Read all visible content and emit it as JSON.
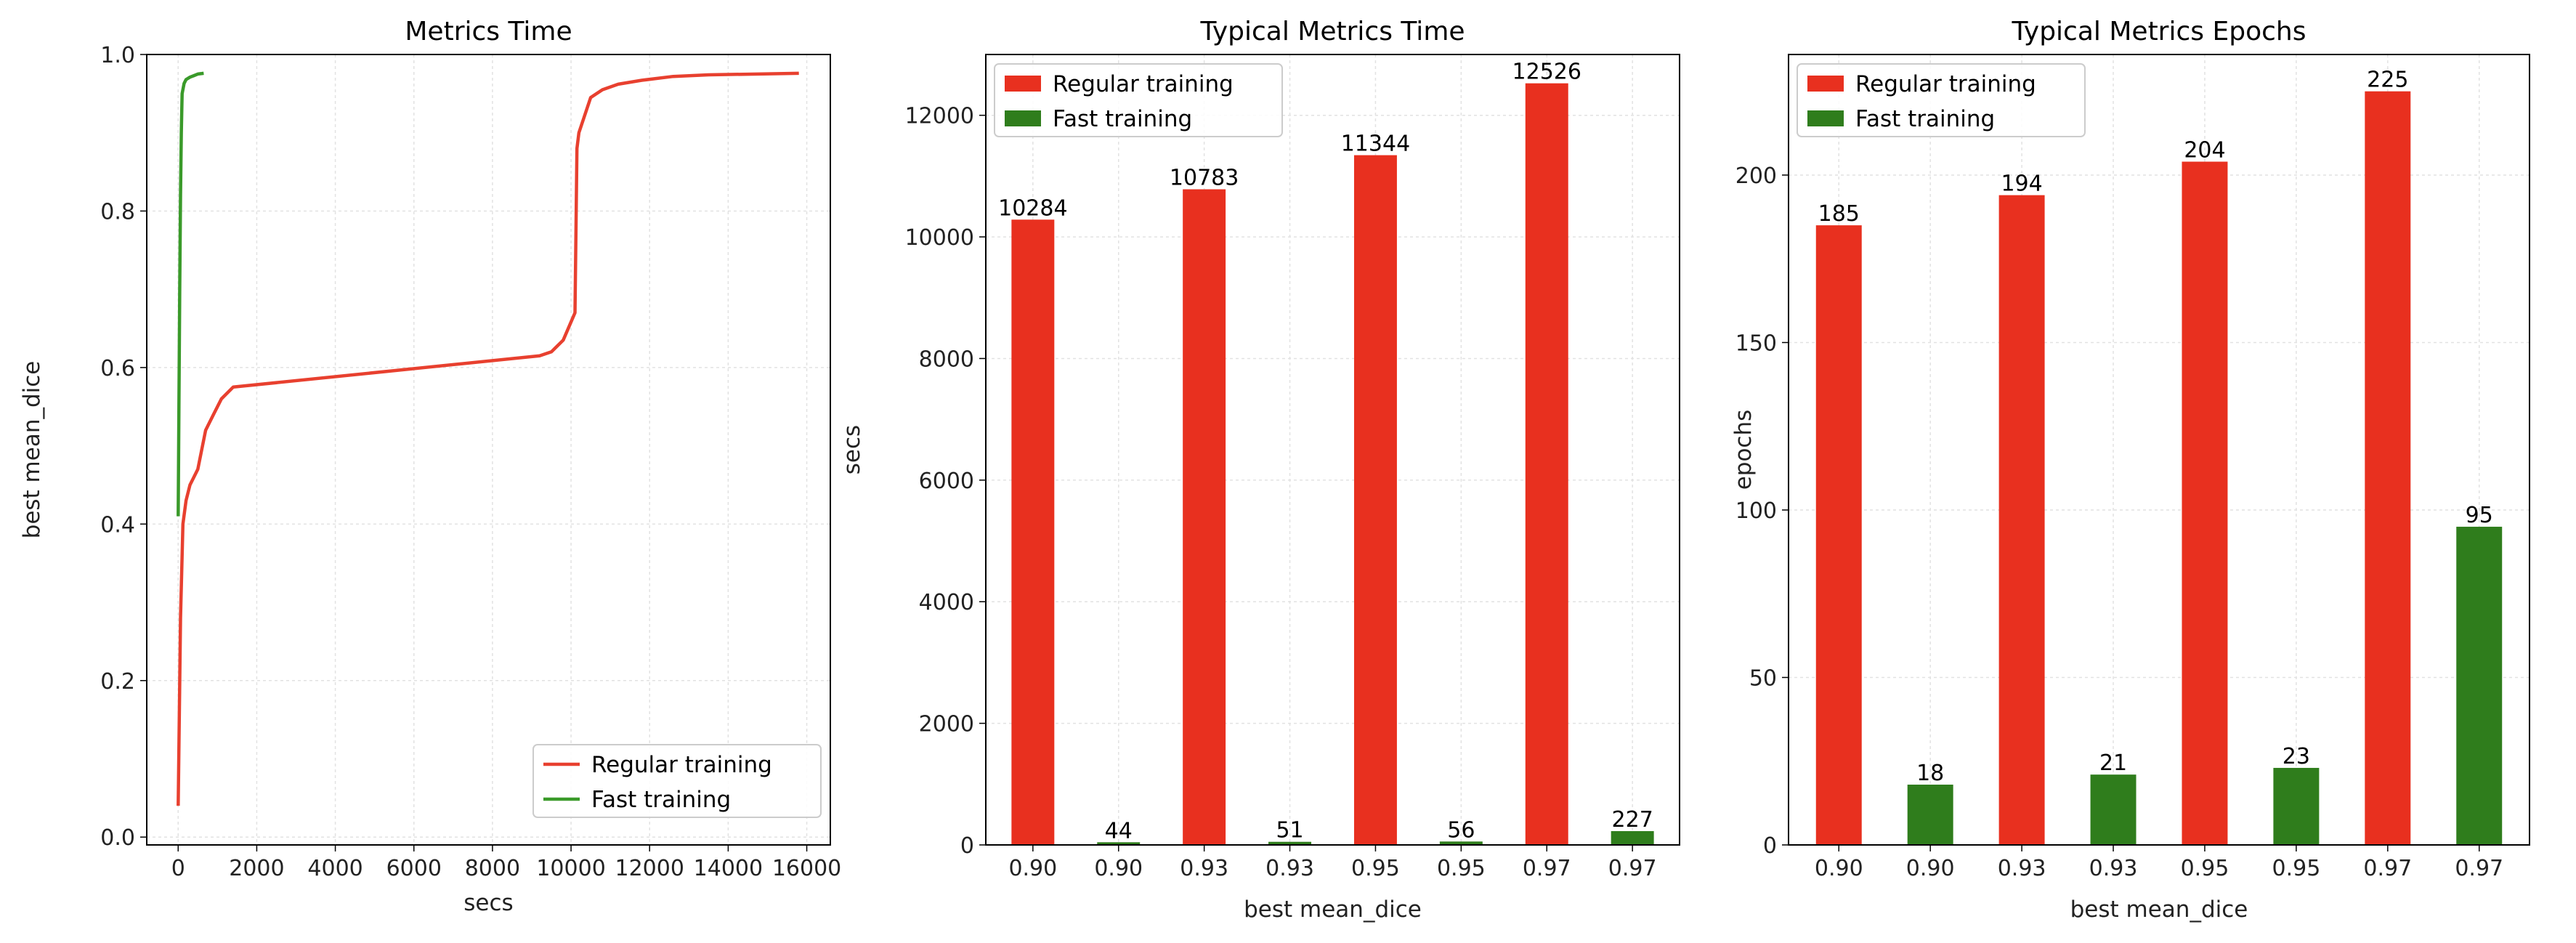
{
  "colors": {
    "regular": "#e8301f",
    "fast": "#2f7d1c",
    "regular_line": "#e8402f",
    "fast_line": "#3a9a2a",
    "grid": "#e2e2e2"
  },
  "chart_data": [
    {
      "type": "line",
      "title": "Metrics Time",
      "xlabel": "secs",
      "ylabel": "best mean_dice",
      "xlim": [
        -800,
        16600
      ],
      "ylim": [
        -0.01,
        1.0
      ],
      "xticks": [
        0,
        2000,
        4000,
        6000,
        8000,
        10000,
        12000,
        14000,
        16000
      ],
      "yticks": [
        0.0,
        0.2,
        0.4,
        0.6,
        0.8,
        1.0
      ],
      "xtick_labels": [
        "0",
        "2000",
        "4000",
        "6000",
        "8000",
        "10000",
        "12000",
        "14000",
        "16000"
      ],
      "ytick_labels": [
        "0.0",
        "0.2",
        "0.4",
        "0.6",
        "0.8",
        "1.0"
      ],
      "grid": true,
      "legend_position": "bottom-right",
      "series": [
        {
          "name": "Regular training",
          "x": [
            0,
            60,
            120,
            200,
            300,
            400,
            500,
            700,
            900,
            1100,
            1400,
            9200,
            9500,
            9800,
            10100,
            10150,
            10200,
            10500,
            10800,
            11200,
            11800,
            12600,
            13500,
            15800
          ],
          "y": [
            0.04,
            0.28,
            0.4,
            0.43,
            0.45,
            0.46,
            0.47,
            0.52,
            0.54,
            0.56,
            0.575,
            0.615,
            0.62,
            0.635,
            0.67,
            0.88,
            0.9,
            0.945,
            0.955,
            0.962,
            0.967,
            0.972,
            0.974,
            0.976
          ]
        },
        {
          "name": "Fast training",
          "x": [
            0,
            20,
            40,
            60,
            80,
            100,
            150,
            200,
            300,
            400,
            500,
            650
          ],
          "y": [
            0.41,
            0.55,
            0.7,
            0.82,
            0.9,
            0.95,
            0.963,
            0.968,
            0.971,
            0.973,
            0.975,
            0.976
          ]
        }
      ]
    },
    {
      "type": "bar",
      "title": "Typical Metrics Time",
      "xlabel": "best mean_dice",
      "ylabel": "secs",
      "categories": [
        "0.90",
        "0.90",
        "0.93",
        "0.93",
        "0.95",
        "0.95",
        "0.97",
        "0.97"
      ],
      "ylim": [
        0,
        13000
      ],
      "yticks": [
        0,
        2000,
        4000,
        6000,
        8000,
        10000,
        12000
      ],
      "ytick_labels": [
        "0",
        "2000",
        "4000",
        "6000",
        "8000",
        "10000",
        "12000"
      ],
      "grid": true,
      "legend_position": "top-left",
      "series": [
        {
          "name": "Regular training",
          "positions": [
            0,
            2,
            4,
            6
          ],
          "values": [
            10284,
            10783,
            11344,
            12526
          ],
          "labels": [
            "10284",
            "10783",
            "11344",
            "12526"
          ]
        },
        {
          "name": "Fast training",
          "positions": [
            1,
            3,
            5,
            7
          ],
          "values": [
            44,
            51,
            56,
            227
          ],
          "labels": [
            "44",
            "51",
            "56",
            "227"
          ]
        }
      ]
    },
    {
      "type": "bar",
      "title": "Typical Metrics Epochs",
      "xlabel": "best mean_dice",
      "ylabel": "epochs",
      "categories": [
        "0.90",
        "0.90",
        "0.93",
        "0.93",
        "0.95",
        "0.95",
        "0.97",
        "0.97"
      ],
      "ylim": [
        0,
        236
      ],
      "yticks": [
        0,
        50,
        100,
        150,
        200
      ],
      "ytick_labels": [
        "0",
        "50",
        "100",
        "150",
        "200"
      ],
      "grid": true,
      "legend_position": "top-left",
      "series": [
        {
          "name": "Regular training",
          "positions": [
            0,
            2,
            4,
            6
          ],
          "values": [
            185,
            194,
            204,
            225
          ],
          "labels": [
            "185",
            "194",
            "204",
            "225"
          ]
        },
        {
          "name": "Fast training",
          "positions": [
            1,
            3,
            5,
            7
          ],
          "values": [
            18,
            21,
            23,
            95
          ],
          "labels": [
            "18",
            "21",
            "23",
            "95"
          ]
        }
      ]
    }
  ]
}
